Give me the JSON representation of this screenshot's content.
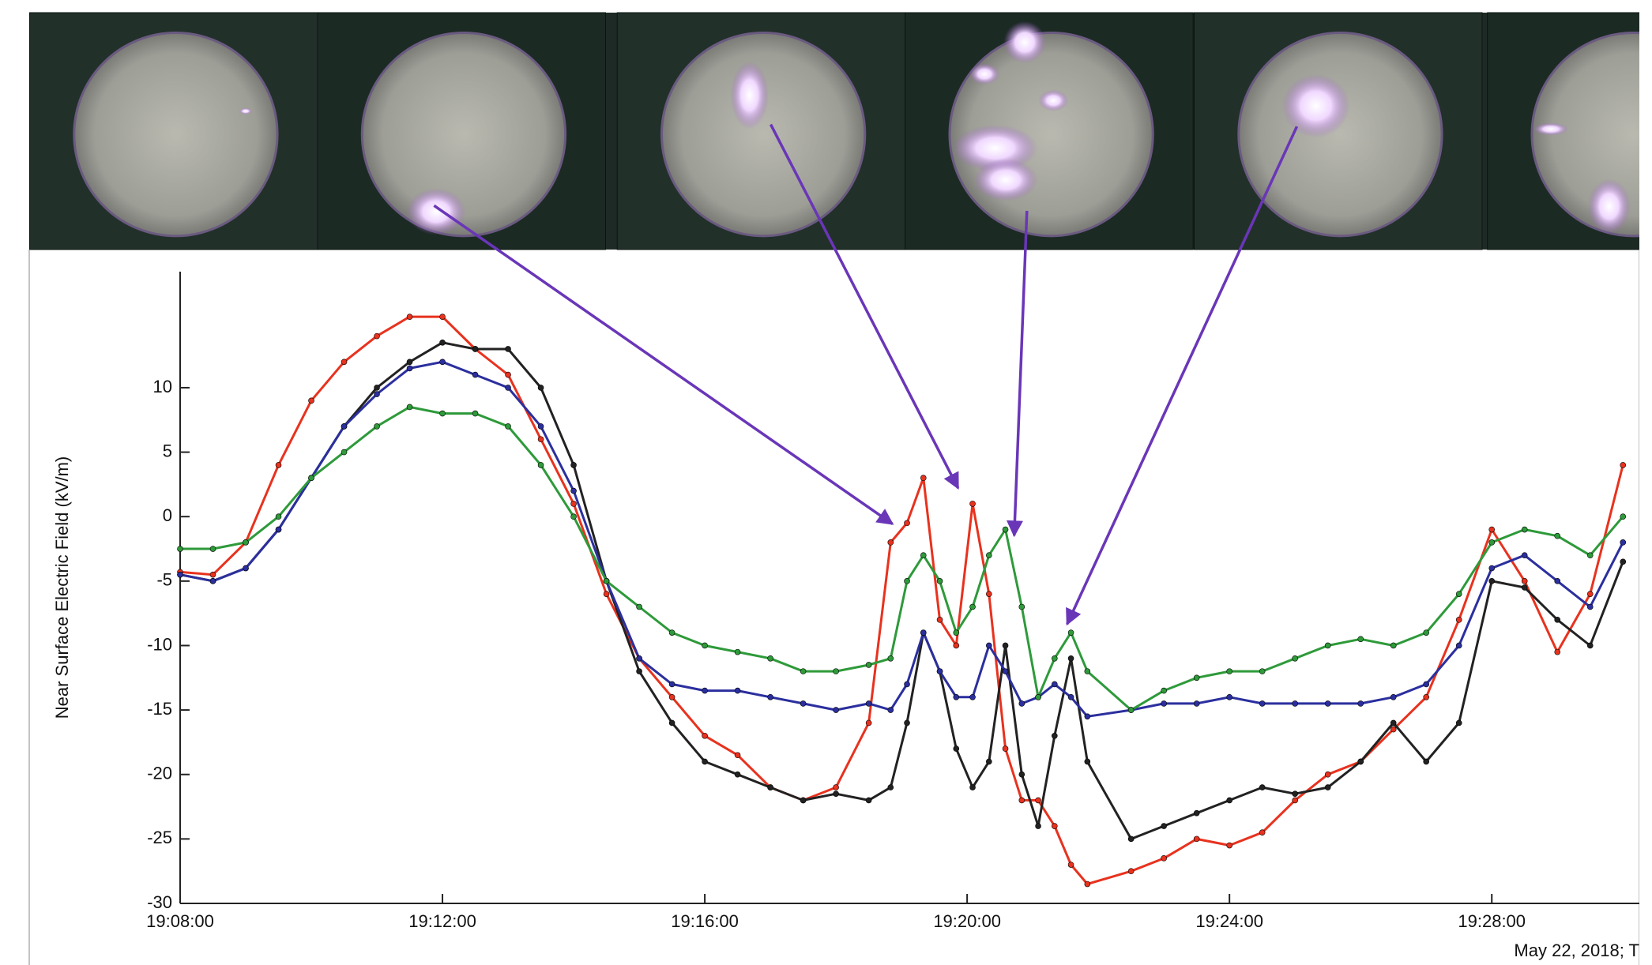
{
  "chart_data": {
    "type": "line",
    "y_label": "Near Surface Electric Field (kV/m)",
    "annotation": "May 22, 2018; T",
    "x": [
      "19:08:00",
      "19:08:30",
      "19:09:00",
      "19:09:30",
      "19:10:00",
      "19:10:30",
      "19:11:00",
      "19:11:30",
      "19:12:00",
      "19:12:30",
      "19:13:00",
      "19:13:30",
      "19:14:00",
      "19:14:30",
      "19:15:00",
      "19:15:30",
      "19:16:00",
      "19:16:30",
      "19:17:00",
      "19:17:30",
      "19:18:00",
      "19:18:30",
      "19:18:50",
      "19:19:05",
      "19:19:20",
      "19:19:35",
      "19:19:50",
      "19:20:05",
      "19:20:20",
      "19:20:35",
      "19:20:50",
      "19:21:05",
      "19:21:20",
      "19:21:35",
      "19:21:50",
      "19:22:30",
      "19:23:00",
      "19:23:30",
      "19:24:00",
      "19:24:30",
      "19:25:00",
      "19:25:30",
      "19:26:00",
      "19:26:30",
      "19:27:00",
      "19:27:30",
      "19:28:00",
      "19:28:30",
      "19:29:00",
      "19:29:30",
      "19:30:00"
    ],
    "series": [
      {
        "color": "#e8321e",
        "values": [
          -4.3,
          -4.5,
          -2,
          4,
          9,
          12,
          14,
          15.5,
          15.5,
          13,
          11,
          6,
          1,
          -6,
          -11,
          -14,
          -17,
          -18.5,
          -21,
          -22,
          -21,
          -16,
          -2,
          -0.5,
          3,
          -8,
          -10,
          1,
          -6,
          -18,
          -22,
          -22,
          -24,
          -27,
          -28.5,
          -27.5,
          -26.5,
          -25,
          -25.5,
          -24.5,
          -22,
          -20,
          -19,
          -16.5,
          -14,
          -8,
          -1,
          -5,
          -10.5,
          -6,
          4
        ]
      },
      {
        "color": "#222222",
        "values": [
          -4.5,
          -5,
          -4,
          -1,
          3,
          7,
          10,
          12,
          13.5,
          13,
          13,
          10,
          4,
          -5,
          -12,
          -16,
          -19,
          -20,
          -21,
          -22,
          -21.5,
          -22,
          -21,
          -16,
          -9,
          -12,
          -18,
          -21,
          -19,
          -10,
          -20,
          -24,
          -17,
          -11,
          -19,
          -25,
          -24,
          -23,
          -22,
          -21,
          -21.5,
          -21,
          -19,
          -16,
          -19,
          -16,
          -5,
          -5.5,
          -8,
          -10,
          -3.5
        ]
      },
      {
        "color": "#2b2f9e",
        "values": [
          -4.5,
          -5,
          -4,
          -1,
          3,
          7,
          9.5,
          11.5,
          12,
          11,
          10,
          7,
          2,
          -5,
          -11,
          -13,
          -13.5,
          -13.5,
          -14,
          -14.5,
          -15,
          -14.5,
          -15,
          -13,
          -9,
          -12,
          -14,
          -14,
          -10,
          -12,
          -14.5,
          -14,
          -13,
          -14,
          -15.5,
          -15,
          -14.5,
          -14.5,
          -14,
          -14.5,
          -14.5,
          -14.5,
          -14.5,
          -14,
          -13,
          -10,
          -4,
          -3,
          -5,
          -7,
          -2
        ]
      },
      {
        "color": "#2e9a3a",
        "values": [
          -2.5,
          -2.5,
          -2,
          0,
          3,
          5,
          7,
          8.5,
          8,
          8,
          7,
          4,
          0,
          -5,
          -7,
          -9,
          -10,
          -10.5,
          -11,
          -12,
          -12,
          -11.5,
          -11,
          -5,
          -3,
          -5,
          -9,
          -7,
          -3,
          -1,
          -7,
          -14,
          -11,
          -9,
          -12,
          -15,
          -13.5,
          -12.5,
          -12,
          -12,
          -11,
          -10,
          -9.5,
          -10,
          -9,
          -6,
          -2,
          -1,
          -1.5,
          -3,
          0
        ]
      }
    ],
    "xlim": [
      "19:08:00",
      "19:30:15"
    ],
    "xticks": [
      "19:08:00",
      "19:12:00",
      "19:16:00",
      "19:20:00",
      "19:24:00",
      "19:28:00"
    ],
    "ylim": [
      -30,
      19
    ],
    "yticks": [
      -30,
      -25,
      -20,
      -15,
      -10,
      -5,
      0,
      5,
      10
    ]
  }
}
